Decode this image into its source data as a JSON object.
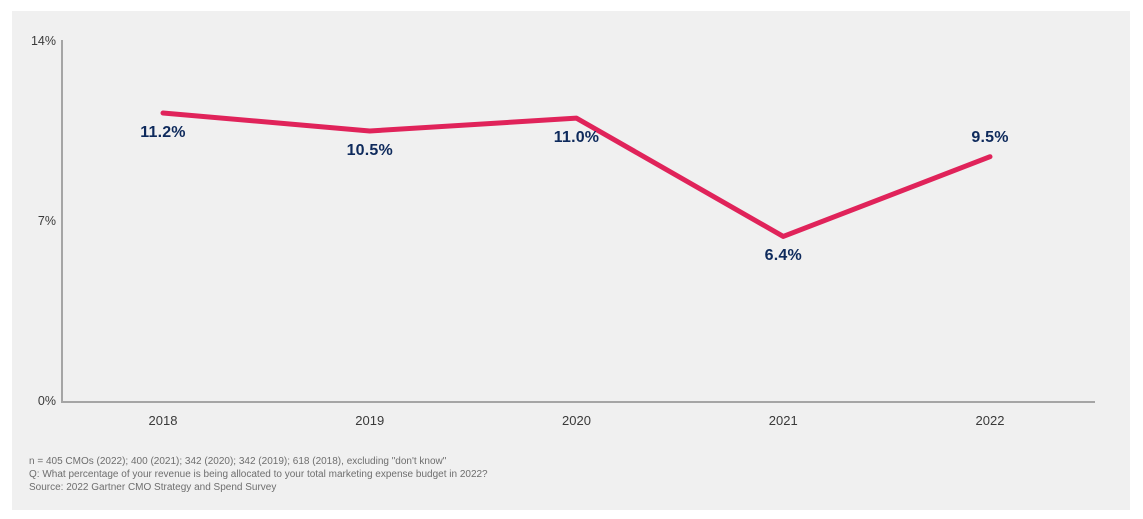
{
  "chart_data": {
    "type": "line",
    "categories": [
      "2018",
      "2019",
      "2020",
      "2021",
      "2022"
    ],
    "values": [
      11.2,
      10.5,
      11.0,
      6.4,
      9.5
    ],
    "point_labels": [
      "11.2%",
      "10.5%",
      "11.0%",
      "6.4%",
      "9.5%"
    ],
    "point_label_positions": [
      "below",
      "below",
      "below",
      "below",
      "above"
    ],
    "title": "",
    "xlabel": "",
    "ylabel": "",
    "ylim": [
      0,
      14
    ],
    "yticks": [
      {
        "value": 0,
        "label": "0%"
      },
      {
        "value": 7,
        "label": "7%"
      },
      {
        "value": 14,
        "label": "14%"
      }
    ],
    "grid": false,
    "legend": "none"
  },
  "colors": {
    "page_background": "#FFFFFF",
    "panel_background": "#F0F0F0",
    "line": "#E0235A",
    "data_label": "#0E2A5C",
    "axis": "#A5A5A5",
    "tick_text": "#3A3A3A",
    "footnote_text": "#6E6E6E"
  },
  "footnotes": {
    "sample": "n = 405 CMOs (2022); 400 (2021); 342 (2020); 342 (2019); 618 (2018), excluding \"don't know\"",
    "question": "Q: What percentage of your revenue is being allocated to your total marketing expense budget in 2022?",
    "source": "Source: 2022 Gartner CMO Strategy and Spend Survey"
  }
}
